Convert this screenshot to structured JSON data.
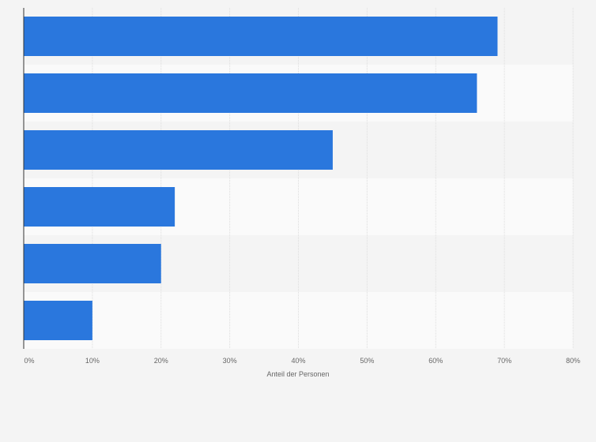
{
  "chart_data": {
    "type": "bar",
    "orientation": "horizontal",
    "categories": [
      "",
      "",
      "",
      "",
      "",
      ""
    ],
    "values": [
      69,
      66,
      45,
      22,
      20,
      10
    ],
    "xlabel": "Anteil der Personen",
    "ylabel": "",
    "xlim": [
      0,
      80
    ],
    "xticks": [
      "0%",
      "10%",
      "20%",
      "30%",
      "40%",
      "50%",
      "60%",
      "70%",
      "80%"
    ],
    "grid": true,
    "bar_color": "#2a77dd",
    "band_colors": [
      "#f4f4f4",
      "#fafafa"
    ]
  }
}
